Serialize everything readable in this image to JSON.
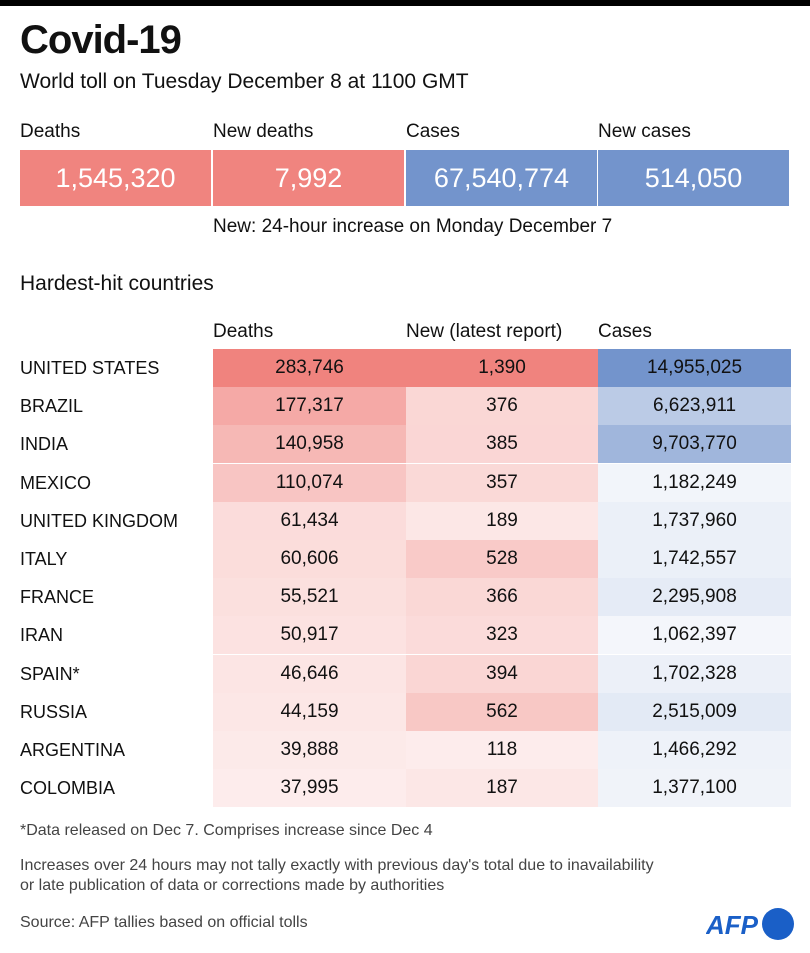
{
  "header": {
    "title": "Covid-19",
    "subtitle": "World toll on Tuesday December 8 at 1100 GMT"
  },
  "kpis": [
    {
      "label": "Deaths",
      "value": "1,545,320",
      "color": "#f0847f"
    },
    {
      "label": "New deaths",
      "value": "7,992",
      "color": "#f0847f"
    },
    {
      "label": "Cases",
      "value": "67,540,774",
      "color": "#7394cc"
    },
    {
      "label": "New cases",
      "value": "514,050",
      "color": "#7394cc"
    }
  ],
  "kpi_note": "New: 24-hour increase on Monday December 7",
  "chart_data": {
    "type": "table",
    "title": "Hardest-hit countries",
    "columns": [
      "Deaths",
      "New (latest report)",
      "Cases"
    ],
    "rows": [
      {
        "country": "UNITED STATES",
        "deaths": 283746,
        "new": 1390,
        "cases": 14955025
      },
      {
        "country": "BRAZIL",
        "deaths": 177317,
        "new": 376,
        "cases": 6623911
      },
      {
        "country": "INDIA",
        "deaths": 140958,
        "new": 385,
        "cases": 9703770
      },
      {
        "country": "MEXICO",
        "deaths": 110074,
        "new": 357,
        "cases": 1182249
      },
      {
        "country": "UNITED KINGDOM",
        "deaths": 61434,
        "new": 189,
        "cases": 1737960
      },
      {
        "country": "ITALY",
        "deaths": 60606,
        "new": 528,
        "cases": 1742557
      },
      {
        "country": "FRANCE",
        "deaths": 55521,
        "new": 366,
        "cases": 2295908
      },
      {
        "country": "IRAN",
        "deaths": 50917,
        "new": 323,
        "cases": 1062397
      },
      {
        "country": "SPAIN*",
        "deaths": 46646,
        "new": 394,
        "cases": 1702328
      },
      {
        "country": "RUSSIA",
        "deaths": 44159,
        "new": 562,
        "cases": 2515009
      },
      {
        "country": "ARGENTINA",
        "deaths": 39888,
        "new": 118,
        "cases": 1466292
      },
      {
        "country": "COLOMBIA",
        "deaths": 37995,
        "new": 187,
        "cases": 1377100
      }
    ],
    "colors": {
      "red": "#f0837e",
      "blue": "#7394cc"
    }
  },
  "footnotes": {
    "asterisk": "*Data released on Dec 7. Comprises increase since Dec 4",
    "disclaimer_line1": "Increases over 24 hours may not tally exactly with previous day's total due to inavailability",
    "disclaimer_line2": "or late publication of data or corrections made by authorities",
    "source": "Source: AFP tallies based on official tolls"
  },
  "logo": {
    "text": "AFP",
    "color": "#1a5fc7"
  }
}
